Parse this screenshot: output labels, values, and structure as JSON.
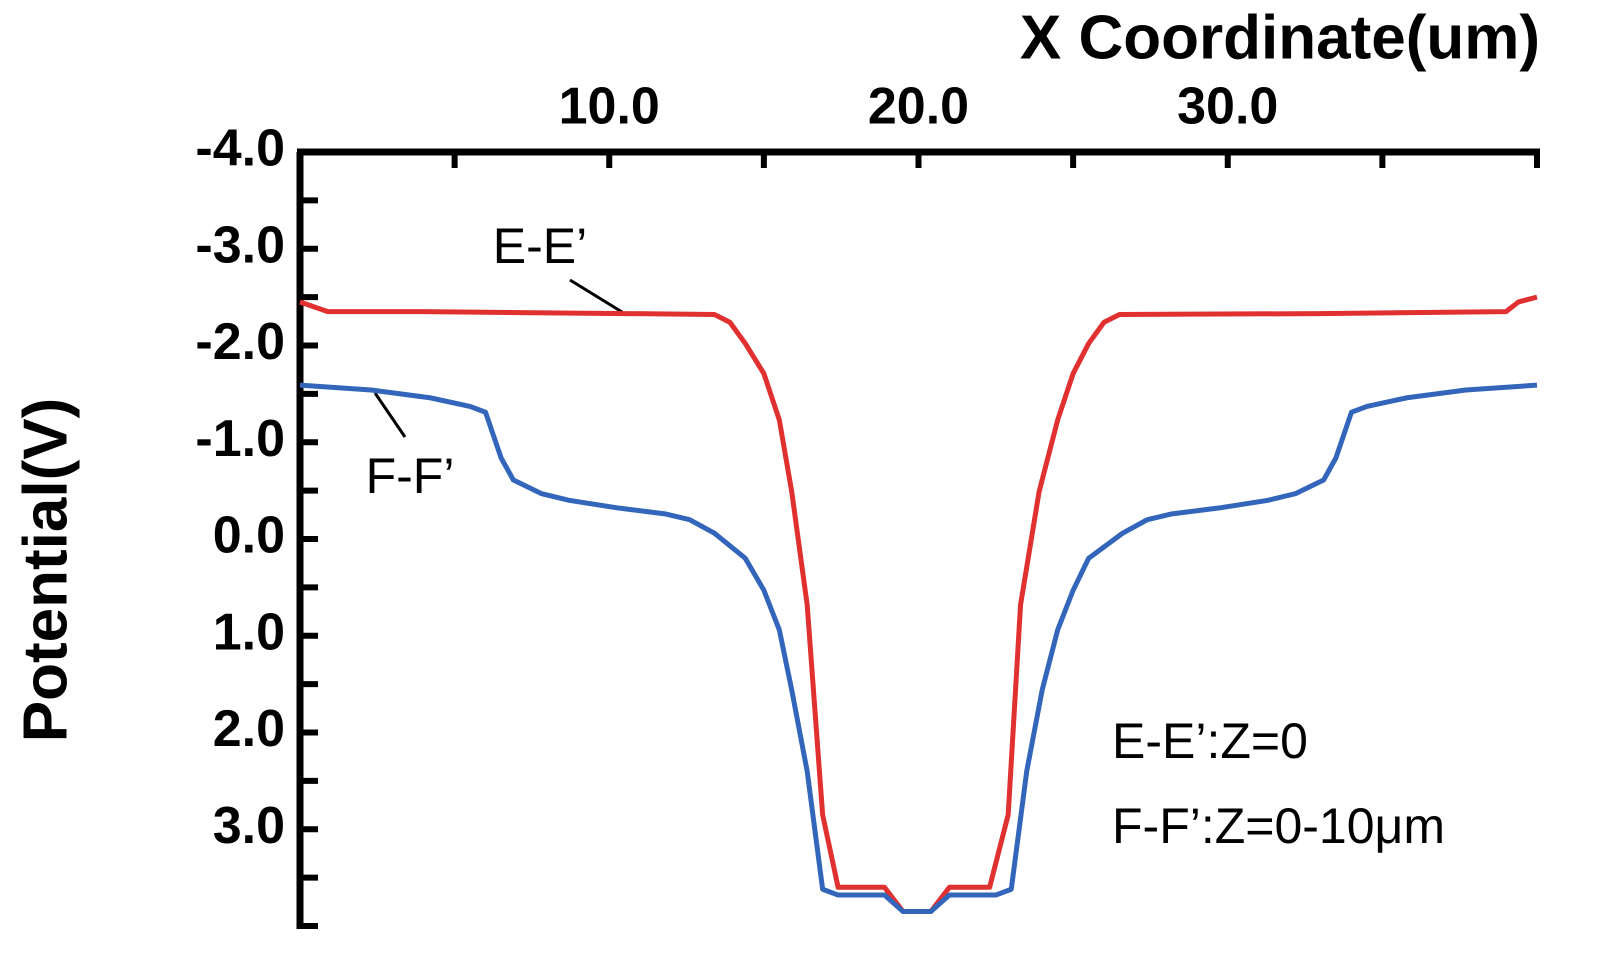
{
  "chart_data": {
    "type": "line",
    "x_label": "X Coordinate(um)",
    "y_label": "Potential(V)",
    "xlim": [
      0,
      40
    ],
    "xticks": [
      {
        "value": 10,
        "label": "10.0"
      },
      {
        "value": 20,
        "label": "20.0"
      },
      {
        "value": 30,
        "label": "30.0"
      }
    ],
    "x_minor_ticks": [
      5,
      15,
      25,
      35,
      40
    ],
    "ylim": [
      -4,
      4
    ],
    "y_reversed": true,
    "yticks": [
      {
        "value": -4,
        "label": "-4.0"
      },
      {
        "value": -3,
        "label": "-3.0"
      },
      {
        "value": -2,
        "label": "-2.0"
      },
      {
        "value": -1,
        "label": "-1.0"
      },
      {
        "value": 0,
        "label": "0.0"
      },
      {
        "value": 1,
        "label": "1.0"
      },
      {
        "value": 2,
        "label": "2.0"
      },
      {
        "value": 3,
        "label": "3.0"
      }
    ],
    "y_minor_ticks": [
      -3.5,
      -2.5,
      -1.5,
      -0.5,
      0.5,
      1.5,
      2.5,
      3.5,
      4
    ],
    "series": [
      {
        "name": "E-E’",
        "color": "#e03030",
        "x": [
          0,
          0.9,
          4,
          10.5,
          13.4,
          13.9,
          14.4,
          15,
          15.5,
          15.9,
          16.4,
          16.9,
          17.4,
          18.9,
          19.5,
          20.4,
          21,
          22.3,
          22.9,
          23.3,
          23.9,
          24.5,
          25,
          25.5,
          26,
          26.5,
          33,
          39,
          39.4,
          40
        ],
        "values": [
          -2.45,
          -2.35,
          -2.35,
          -2.33,
          -2.32,
          -2.24,
          -2.02,
          -1.71,
          -1.23,
          -0.49,
          0.68,
          2.85,
          3.6,
          3.6,
          3.85,
          3.85,
          3.6,
          3.6,
          2.85,
          0.68,
          -0.49,
          -1.23,
          -1.71,
          -2.02,
          -2.24,
          -2.32,
          -2.33,
          -2.35,
          -2.45,
          -2.5
        ]
      },
      {
        "name": "F-F’",
        "color": "#3366bb",
        "x": [
          0,
          2.3,
          4.2,
          5.5,
          6,
          6.5,
          6.9,
          7.8,
          8.7,
          10.3,
          11.8,
          12.6,
          13.4,
          14.4,
          15,
          15.5,
          15.9,
          16.4,
          16.9,
          17.4,
          18.9,
          19.5,
          20.4,
          21,
          22.5,
          23,
          23.5,
          24,
          24.5,
          25,
          25.5,
          26.6,
          27.4,
          28.2,
          29.7,
          31.3,
          32.2,
          33.1,
          33.5,
          34,
          34.5,
          35.8,
          37.7,
          40
        ],
        "values": [
          -1.59,
          -1.54,
          -1.46,
          -1.37,
          -1.31,
          -0.84,
          -0.61,
          -0.47,
          -0.4,
          -0.32,
          -0.26,
          -0.2,
          -0.06,
          0.2,
          0.53,
          0.94,
          1.56,
          2.4,
          3.62,
          3.68,
          3.68,
          3.85,
          3.85,
          3.68,
          3.68,
          3.62,
          2.4,
          1.56,
          0.94,
          0.53,
          0.2,
          -0.06,
          -0.2,
          -0.26,
          -0.32,
          -0.4,
          -0.47,
          -0.61,
          -0.84,
          -1.31,
          -1.37,
          -1.46,
          -1.54,
          -1.59
        ]
      }
    ],
    "annotations": [
      "E-E’:Z=0",
      "F-F’:Z=0-10μm"
    ]
  }
}
